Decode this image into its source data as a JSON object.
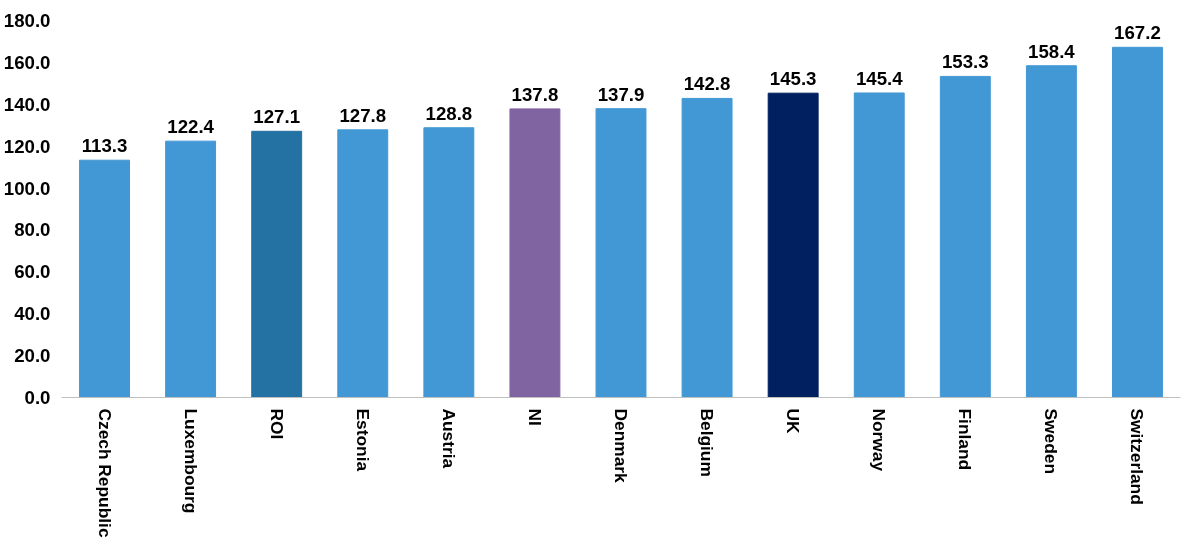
{
  "chart_data": {
    "type": "bar",
    "categories": [
      "Czech Republic",
      "Luxembourg",
      "ROI",
      "Estonia",
      "Austria",
      "NI",
      "Denmark",
      "Belgium",
      "UK",
      "Norway",
      "Finland",
      "Sweden",
      "Switzerland"
    ],
    "values": [
      113.3,
      122.4,
      127.1,
      127.8,
      128.8,
      137.8,
      137.9,
      142.8,
      145.3,
      145.4,
      153.3,
      158.4,
      167.2
    ],
    "colors": [
      "#4298d4",
      "#4298d4",
      "#2471a3",
      "#4298d4",
      "#4298d4",
      "#8064a2",
      "#4298d4",
      "#4298d4",
      "#002060",
      "#4298d4",
      "#4298d4",
      "#4298d4",
      "#4298d4"
    ],
    "ylim": [
      0,
      180
    ],
    "yticks": [
      {
        "value": 0,
        "label": "0.0"
      },
      {
        "value": 20,
        "label": "20.0"
      },
      {
        "value": 40,
        "label": "40.0"
      },
      {
        "value": 60,
        "label": "60.0"
      },
      {
        "value": 80,
        "label": "80.0"
      },
      {
        "value": 100,
        "label": "100.0"
      },
      {
        "value": 120,
        "label": "120.0"
      },
      {
        "value": 140,
        "label": "140.0"
      },
      {
        "value": 160,
        "label": "160.0"
      },
      {
        "value": 180,
        "label": "180.0"
      }
    ],
    "data_labels": true,
    "grid": false
  }
}
